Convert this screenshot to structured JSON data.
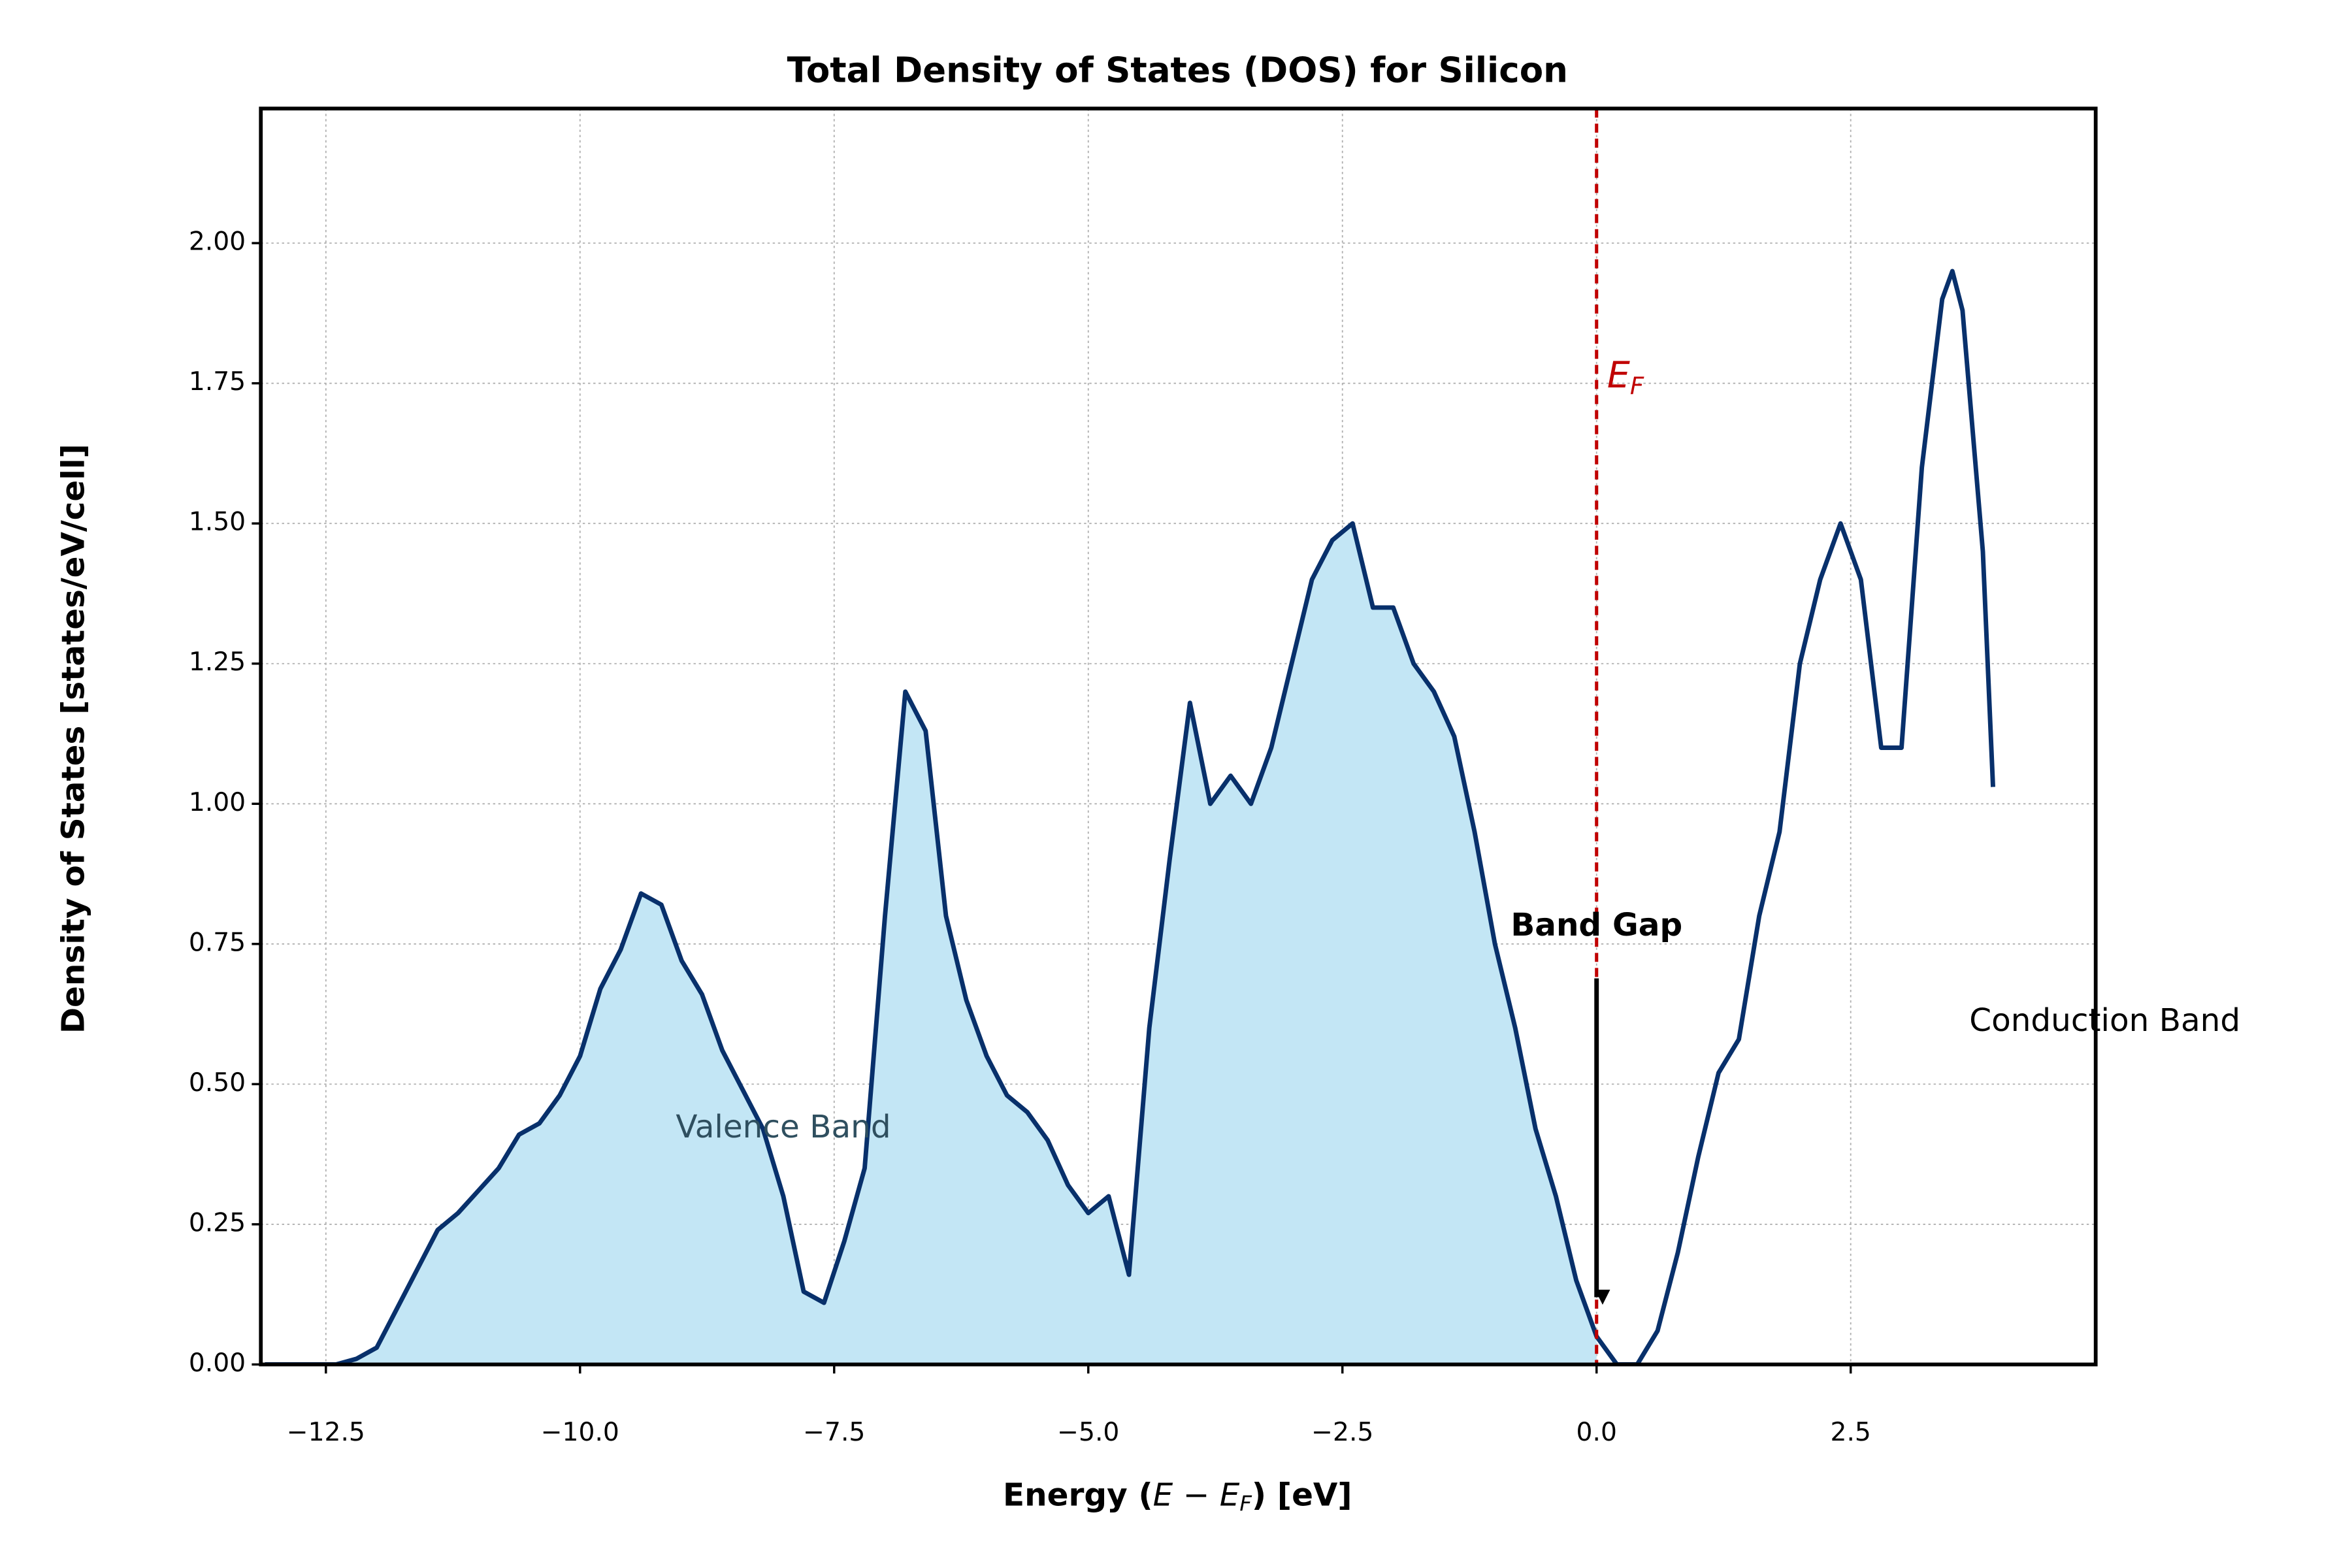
{
  "chart_data": {
    "type": "line",
    "title": "Total Density of States (DOS) for Silicon",
    "xlabel": [
      "Energy (",
      "E",
      " − ",
      "E",
      "F",
      ") [eV]"
    ],
    "ylabel": "Density of States [states/eV/cell]",
    "x": [
      -13.1,
      -12.8,
      -12.4,
      -12.2,
      -12.0,
      -11.8,
      -11.6,
      -11.4,
      -11.2,
      -11.0,
      -10.8,
      -10.6,
      -10.4,
      -10.2,
      -10.0,
      -9.8,
      -9.6,
      -9.4,
      -9.2,
      -9.0,
      -8.8,
      -8.6,
      -8.4,
      -8.2,
      -8.0,
      -7.8,
      -7.6,
      -7.4,
      -7.2,
      -7.0,
      -6.8,
      -6.6,
      -6.4,
      -6.2,
      -6.0,
      -5.8,
      -5.6,
      -5.4,
      -5.2,
      -5.0,
      -4.8,
      -4.6,
      -4.4,
      -4.2,
      -4.0,
      -3.8,
      -3.6,
      -3.4,
      -3.2,
      -3.0,
      -2.8,
      -2.6,
      -2.4,
      -2.2,
      -2.0,
      -1.8,
      -1.6,
      -1.4,
      -1.2,
      -1.0,
      -0.8,
      -0.6,
      -0.4,
      -0.2,
      0.0,
      0.2,
      0.4,
      0.6,
      0.8,
      1.0,
      1.2,
      1.4,
      1.6,
      1.8,
      2.0,
      2.2,
      2.4,
      2.6,
      2.8,
      3.0,
      3.2,
      3.4,
      3.5,
      3.6,
      3.8,
      3.9
    ],
    "values": [
      0,
      0,
      0,
      0.01,
      0.03,
      0.1,
      0.17,
      0.24,
      0.27,
      0.31,
      0.35,
      0.41,
      0.43,
      0.48,
      0.55,
      0.67,
      0.74,
      0.84,
      0.82,
      0.72,
      0.66,
      0.56,
      0.49,
      0.42,
      0.3,
      0.13,
      0.11,
      0.22,
      0.35,
      0.8,
      1.2,
      1.13,
      0.8,
      0.65,
      0.55,
      0.48,
      0.45,
      0.4,
      0.32,
      0.27,
      0.3,
      0.16,
      0.6,
      0.9,
      1.18,
      1.0,
      1.05,
      1.0,
      1.1,
      1.25,
      1.4,
      1.47,
      1.5,
      1.35,
      1.35,
      1.25,
      1.2,
      1.12,
      0.95,
      0.75,
      0.6,
      0.42,
      0.3,
      0.15,
      0.05,
      0,
      0,
      0.06,
      0.2,
      0.37,
      0.52,
      0.58,
      0.8,
      0.95,
      1.25,
      1.4,
      1.5,
      1.4,
      1.1,
      1.1,
      1.6,
      1.9,
      1.95,
      1.88,
      1.45,
      1.03
    ],
    "color": "#08306b",
    "fill_color": "#c3e6f5",
    "fill_below_fermi": true,
    "fermi_level": 0.0,
    "fermi_color": "#c00000",
    "fermi_label": [
      "E",
      "F"
    ],
    "xlim": [
      -13.14,
      4.91
    ],
    "ylim": [
      0,
      2.24
    ],
    "xticks": [
      {
        "value": -12.5,
        "label": "−12.5"
      },
      {
        "value": -10,
        "label": "−10.0"
      },
      {
        "value": -7.5,
        "label": "−7.5"
      },
      {
        "value": -5,
        "label": "−5.0"
      },
      {
        "value": -2.5,
        "label": "−2.5"
      },
      {
        "value": 0,
        "label": "0.0"
      },
      {
        "value": 2.5,
        "label": "2.5"
      }
    ],
    "yticks": [
      {
        "value": 0,
        "label": "0.00"
      },
      {
        "value": 0.25,
        "label": "0.25"
      },
      {
        "value": 0.5,
        "label": "0.50"
      },
      {
        "value": 0.75,
        "label": "0.75"
      },
      {
        "value": 1,
        "label": "1.00"
      },
      {
        "value": 1.25,
        "label": "1.25"
      },
      {
        "value": 1.5,
        "label": "1.50"
      },
      {
        "value": 1.75,
        "label": "1.75"
      },
      {
        "value": 2,
        "label": "2.00"
      }
    ],
    "grid": true,
    "annotations": [
      {
        "text": "Band Gap",
        "x": 0,
        "y": 0.78,
        "arrow_to": [
          0,
          0.12
        ]
      },
      {
        "text": "Valence Band",
        "x": -8.0,
        "y": 0.42
      },
      {
        "text": "Conduction Band",
        "x": 5.0,
        "y": 0.61
      }
    ]
  }
}
